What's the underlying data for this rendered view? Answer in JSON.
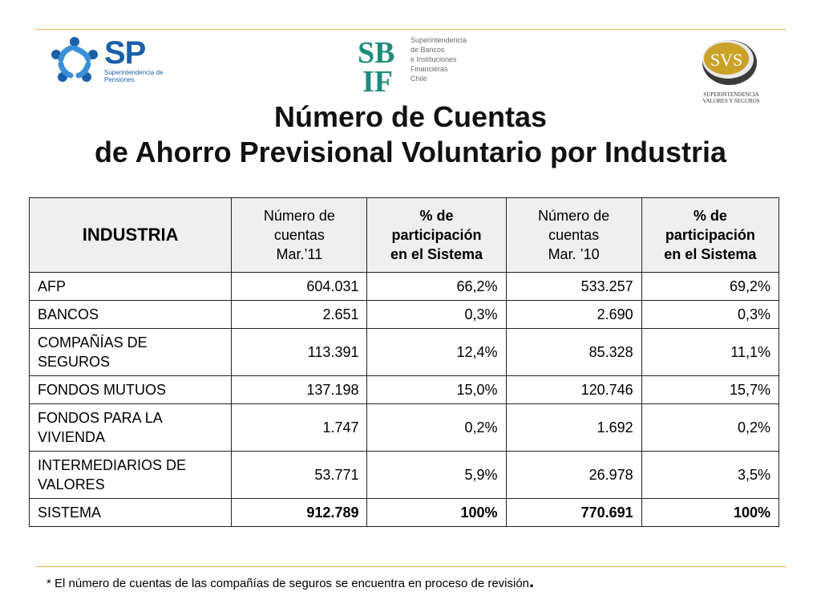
{
  "logos": {
    "sp": {
      "letters": "SP",
      "subtitle": "Superintendencia de Pensiones",
      "color": "#1a5fa8"
    },
    "sbif": {
      "mark": "SBIF",
      "subtitle_lines": [
        "Superintendencia",
        "de Bancos",
        "e Instituciones",
        "Financieras",
        "Chile"
      ],
      "color": "#1f8b7a"
    },
    "svs": {
      "mark": "SVS",
      "subtitle_lines": [
        "SUPERINTENDENCIA",
        "VALORES Y SEGUROS"
      ],
      "color": "#c9a227"
    }
  },
  "title": {
    "line1": "Número de Cuentas",
    "line2": "de Ahorro Previsional Voluntario por Industria"
  },
  "table": {
    "headers": {
      "industria": "INDUSTRIA",
      "col2": [
        "Número de",
        "cuentas",
        "Mar.’11"
      ],
      "col3": [
        "% de",
        "participación",
        "en el Sistema"
      ],
      "col4": [
        "Número de",
        "cuentas",
        "Mar. ’10"
      ],
      "col5": [
        "% de",
        "participación",
        "en el Sistema"
      ]
    },
    "rows": [
      {
        "industria": [
          "AFP"
        ],
        "cuentas_11": "604.031",
        "pct_11": "66,2%",
        "cuentas_10": "533.257",
        "pct_10": "69,2%"
      },
      {
        "industria": [
          "BANCOS"
        ],
        "cuentas_11": "2.651",
        "pct_11": "0,3%",
        "cuentas_10": "2.690",
        "pct_10": "0,3%"
      },
      {
        "industria": [
          "COMPAÑÍAS DE",
          "SEGUROS"
        ],
        "cuentas_11": "113.391",
        "pct_11": "12,4%",
        "cuentas_10": "85.328",
        "pct_10": "11,1%"
      },
      {
        "industria": [
          "FONDOS MUTUOS"
        ],
        "cuentas_11": "137.198",
        "pct_11": "15,0%",
        "cuentas_10": "120.746",
        "pct_10": "15,7%"
      },
      {
        "industria": [
          "FONDOS PARA LA",
          "VIVIENDA"
        ],
        "cuentas_11": "1.747",
        "pct_11": "0,2%",
        "cuentas_10": "1.692",
        "pct_10": "0,2%"
      },
      {
        "industria": [
          "INTERMEDIARIOS DE",
          "VALORES"
        ],
        "cuentas_11": "53.771",
        "pct_11": "5,9%",
        "cuentas_10": "26.978",
        "pct_10": "3,5%"
      },
      {
        "industria": [
          "SISTEMA"
        ],
        "cuentas_11": "912.789",
        "pct_11": "100%",
        "cuentas_10": "770.691",
        "pct_10": "100%",
        "total": true
      }
    ]
  },
  "footnote": {
    "text": "* El número de cuentas de las compañías de seguros se encuentra en proceso de revisión",
    "end": "."
  },
  "colors": {
    "rule": "#e8b24a",
    "header_bg": "#efefef"
  }
}
